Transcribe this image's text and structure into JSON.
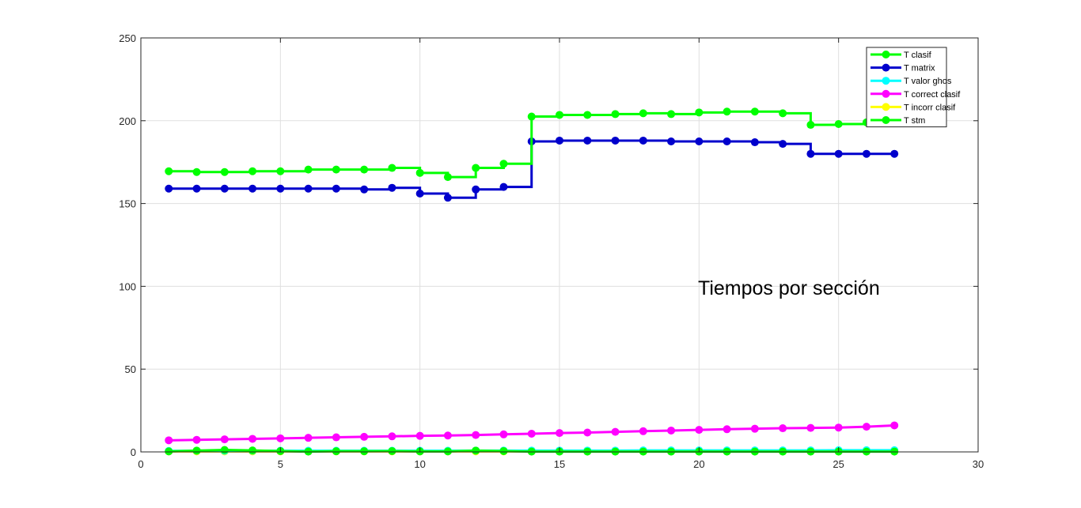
{
  "chart_data": {
    "type": "line",
    "title": "",
    "xlabel": "",
    "ylabel": "",
    "xlim": [
      0,
      30
    ],
    "ylim": [
      0,
      250
    ],
    "xticks": [
      0,
      5,
      10,
      15,
      20,
      25,
      30
    ],
    "yticks": [
      0,
      50,
      100,
      150,
      200,
      250
    ],
    "grid": true,
    "legend_position": "top-right",
    "annotation": "Tiempos por sección",
    "x": [
      1,
      2,
      3,
      4,
      5,
      6,
      7,
      8,
      9,
      10,
      11,
      12,
      13,
      14,
      15,
      16,
      17,
      18,
      19,
      20,
      21,
      22,
      23,
      24,
      25,
      26,
      27
    ],
    "series": [
      {
        "name": "T clasif",
        "color": "#00ff00",
        "style": "stairs",
        "values": [
          169.5,
          169,
          169,
          169.5,
          169.5,
          170.5,
          170.5,
          170.5,
          171.5,
          168.5,
          166,
          171.5,
          174,
          202.5,
          203.5,
          203.5,
          204,
          204.5,
          204,
          205,
          205.5,
          205.5,
          204.5,
          197.5,
          198,
          199,
          199
        ]
      },
      {
        "name": "T matrix",
        "color": "#0000cc",
        "style": "stairs",
        "values": [
          159,
          159,
          159,
          159,
          159,
          159,
          159,
          158.5,
          159.5,
          156,
          153.5,
          158.5,
          160,
          187.5,
          188,
          188,
          188,
          188,
          187.5,
          187.5,
          187.5,
          187,
          186,
          180,
          180,
          180,
          180
        ]
      },
      {
        "name": "T valor ghos",
        "color": "#00ffff",
        "style": "line",
        "values": [
          0.6,
          0.7,
          0.7,
          0.7,
          0.7,
          0.7,
          0.7,
          0.7,
          0.7,
          0.7,
          0.7,
          0.8,
          0.8,
          0.8,
          0.8,
          0.8,
          0.8,
          0.9,
          0.9,
          0.9,
          0.9,
          0.9,
          0.9,
          0.9,
          1.0,
          1.0,
          1.0
        ]
      },
      {
        "name": "T correct clasif",
        "color": "#ff00ff",
        "style": "line",
        "values": [
          7,
          7.3,
          7.6,
          7.9,
          8.2,
          8.5,
          8.8,
          9.1,
          9.4,
          9.7,
          9.9,
          10.2,
          10.6,
          11,
          11.4,
          11.7,
          12.1,
          12.5,
          12.9,
          13.3,
          13.7,
          14,
          14.3,
          14.5,
          14.7,
          15.2,
          16
        ]
      },
      {
        "name": "T incorr clasif",
        "color": "#ffff00",
        "style": "line",
        "values": [
          0.3,
          0.3,
          0.3,
          0.3,
          0.3,
          0.3,
          0.3,
          0.3,
          0.3,
          0.3,
          0.3,
          0.3,
          0.3,
          0.3,
          0.3,
          0.3,
          0.3,
          0.3,
          0.3,
          0.3,
          0.3,
          0.3,
          0.3,
          0.3,
          0.3,
          0.3,
          0.3
        ]
      },
      {
        "name": "T stm",
        "color": "#00ff00",
        "style": "line",
        "values": [
          0.3,
          0.8,
          1.2,
          0.9,
          0.5,
          0.2,
          0.4,
          0.4,
          0.5,
          0.3,
          0.3,
          0.8,
          0.5,
          0.2,
          0.2,
          0.2,
          0.2,
          0.2,
          0.2,
          0.2,
          0.2,
          0.2,
          0.2,
          0.2,
          0.2,
          0.2,
          0.2
        ]
      }
    ]
  }
}
